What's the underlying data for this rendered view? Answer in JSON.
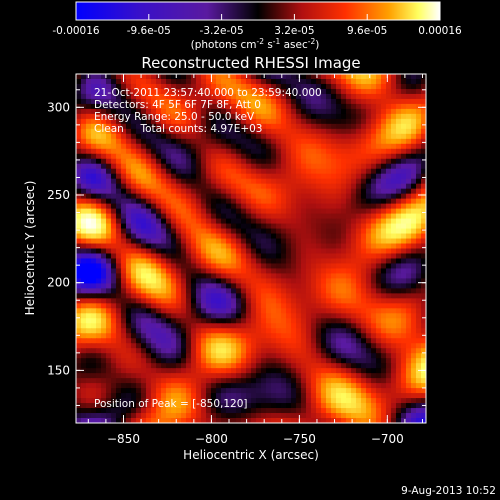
{
  "colorbar": {
    "tick_labels": [
      "-0.00016",
      "-9.6e-05",
      "-3.2e-05",
      "3.2e-05",
      "9.6e-05",
      "0.00016"
    ],
    "range": [
      -0.00016,
      0.00016
    ],
    "unit_label": {
      "prefix": "(photons cm",
      "exp1": "-2",
      "mid": " s",
      "exp2": "-1",
      "mid2": " asec",
      "exp3": "-2",
      "suffix": ")"
    },
    "colormap_stops": [
      "#0000ff",
      "#3a10c8",
      "#5a1aa0",
      "#000000",
      "#b01010",
      "#ff3000",
      "#ffa000",
      "#ffff60",
      "#ffffff"
    ]
  },
  "chart_data": {
    "type": "heatmap",
    "title": "Reconstructed RHESSI Image",
    "xlabel": "Heliocentric X (arcsec)",
    "ylabel": "Heliocentric Y (arcsec)",
    "xlim": [
      -877,
      -678
    ],
    "ylim": [
      120,
      319
    ],
    "xticks": [
      -850,
      -800,
      -750,
      -700
    ],
    "yticks": [
      150,
      200,
      250,
      300
    ],
    "value_range": [
      -0.00016,
      0.00016
    ],
    "annotations": [
      "21-Oct-2011 23:57:40.000 to 23:59:40.000",
      "Detectors: 4F 5F 6F 7F 8F, Att 0",
      "Energy Range: 25.0 - 50.0 keV",
      "Clean     Total counts: 4.97E+03"
    ],
    "peak_label": "Position of Peak = [-850,120]"
  },
  "footer": {
    "date": "9-Aug-2013 10:52"
  }
}
